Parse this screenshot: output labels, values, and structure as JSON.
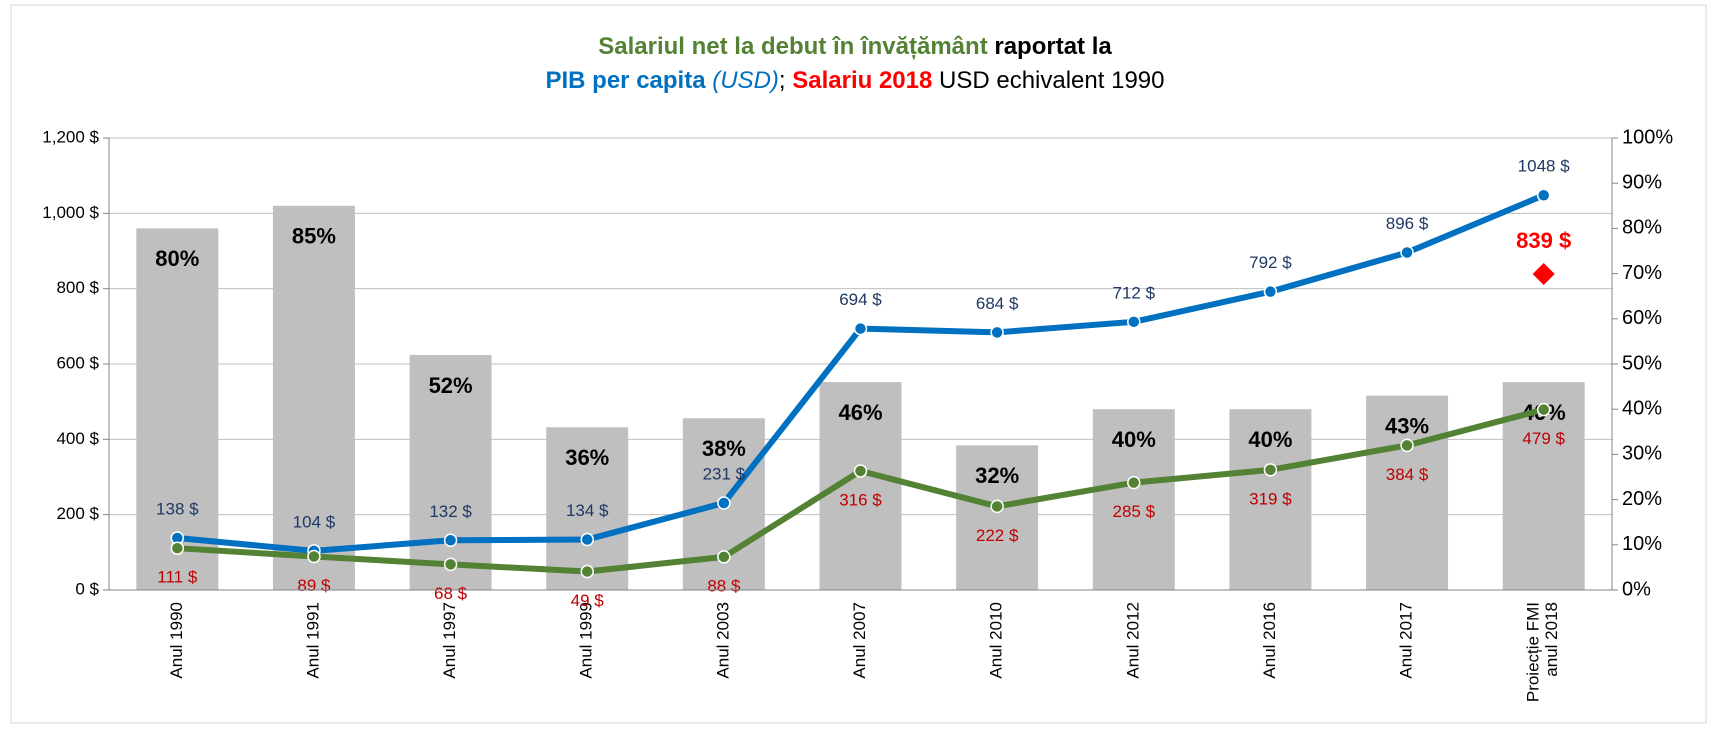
{
  "chart_data": {
    "type": "combo",
    "title_lines": [
      [
        {
          "text": "Salariul net la debut în învățământ",
          "color": "#548235",
          "weight": "bold",
          "style": "normal"
        },
        {
          "text": " raportat la",
          "color": "#000000",
          "weight": "bold",
          "style": "normal"
        }
      ],
      [
        {
          "text": "PIB per capita",
          "color": "#0070c0",
          "weight": "bold",
          "style": "normal"
        },
        {
          "text": " (USD)",
          "color": "#0070c0",
          "weight": "normal",
          "style": "italic"
        },
        {
          "text": "; ",
          "color": "#000000",
          "weight": "normal",
          "style": "normal"
        },
        {
          "text": "Salariu 2018",
          "color": "#ff0000",
          "weight": "bold",
          "style": "normal"
        },
        {
          "text": " USD echivalent 1990",
          "color": "#000000",
          "weight": "normal",
          "style": "normal"
        }
      ]
    ],
    "categories": [
      "Anul 1990",
      "Anul 1991",
      "Anul 1997",
      "Anul 1999",
      "Anul 2003",
      "Anul 2007",
      "Anul 2010",
      "Anul 2012",
      "Anul 2016",
      "Anul 2017",
      "Proiecție FMI\nanul 2018"
    ],
    "ylim": [
      0,
      1200
    ],
    "yticks": [
      {
        "value": 0,
        "label": "0 $"
      },
      {
        "value": 200,
        "label": "200 $"
      },
      {
        "value": 400,
        "label": "400 $"
      },
      {
        "value": 600,
        "label": "600 $"
      },
      {
        "value": 800,
        "label": "800 $"
      },
      {
        "value": 1000,
        "label": "1,000 $"
      },
      {
        "value": 1200,
        "label": "1,200 $"
      }
    ],
    "y2lim": [
      0,
      100
    ],
    "y2ticks": [
      {
        "value": 0,
        "label": "0%"
      },
      {
        "value": 10,
        "label": "10%"
      },
      {
        "value": 20,
        "label": "20%"
      },
      {
        "value": 30,
        "label": "30%"
      },
      {
        "value": 40,
        "label": "40%"
      },
      {
        "value": 50,
        "label": "50%"
      },
      {
        "value": 60,
        "label": "60%"
      },
      {
        "value": 70,
        "label": "70%"
      },
      {
        "value": 80,
        "label": "80%"
      },
      {
        "value": 90,
        "label": "90%"
      },
      {
        "value": 100,
        "label": "100%"
      }
    ],
    "grid": true,
    "series": [
      {
        "kind": "bar",
        "axis": "y2",
        "color": "#bfbfbf",
        "label_color": "#000000",
        "values": [
          80,
          85,
          52,
          36,
          38,
          46,
          32,
          40,
          40,
          43,
          46
        ],
        "value_labels": [
          "80%",
          "85%",
          "52%",
          "36%",
          "38%",
          "46%",
          "32%",
          "40%",
          "40%",
          "43%",
          "46%"
        ]
      },
      {
        "kind": "line",
        "color": "#0070c0",
        "label_color": "#1f3864",
        "label_pos": "above",
        "values": [
          138,
          104,
          132,
          134,
          231,
          694,
          684,
          712,
          792,
          896,
          1048
        ],
        "value_labels": [
          "138 $",
          "104 $",
          "132 $",
          "134 $",
          "231 $",
          "694 $",
          "684 $",
          "712 $",
          "792 $",
          "896 $",
          "1048 $"
        ]
      },
      {
        "kind": "line",
        "color": "#548235",
        "label_color": "#c00000",
        "label_pos": "below",
        "values": [
          111,
          89,
          68,
          49,
          88,
          316,
          222,
          285,
          319,
          384,
          479
        ],
        "value_labels": [
          "111 $",
          "89 $",
          "68 $",
          "49 $",
          "88 $",
          "316 $",
          "222 $",
          "285 $",
          "319 $",
          "384 $",
          "479 $"
        ]
      },
      {
        "kind": "marker",
        "color": "#ff0000",
        "label_color": "#ff0000",
        "label_pos": "above",
        "values": [
          null,
          null,
          null,
          null,
          null,
          null,
          null,
          null,
          null,
          null,
          839
        ],
        "value_labels": [
          null,
          null,
          null,
          null,
          null,
          null,
          null,
          null,
          null,
          null,
          "839 $"
        ]
      }
    ]
  }
}
